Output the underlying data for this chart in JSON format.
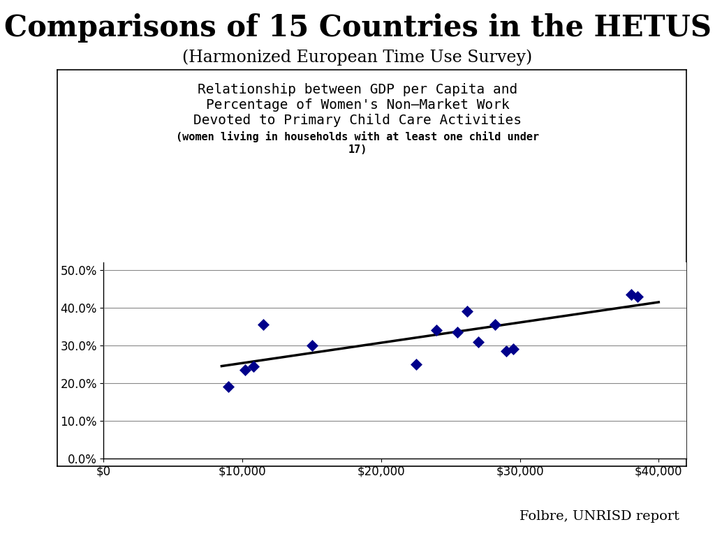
{
  "title_main": "Comparisons of 15 Countries in the HETUS",
  "title_sub": "(Harmonized European Time Use Survey)",
  "chart_title_line1": "Relationship between GDP per Capita and",
  "chart_title_line2": "Percentage of Women's Non–Market Work",
  "chart_title_line3": "Devoted to Primary Child Care Activities",
  "chart_subtitle": "(women living in households with at least one child under\n17)",
  "source": "Folbre, UNRISD report",
  "x_data": [
    9000,
    10200,
    10800,
    11500,
    15000,
    22500,
    24000,
    25500,
    26200,
    27000,
    28200,
    29000,
    29500,
    38000,
    38500
  ],
  "y_data": [
    0.19,
    0.235,
    0.245,
    0.355,
    0.3,
    0.25,
    0.34,
    0.335,
    0.39,
    0.31,
    0.355,
    0.285,
    0.29,
    0.435,
    0.43
  ],
  "trendline_x": [
    8500,
    40000
  ],
  "trendline_y": [
    0.245,
    0.415
  ],
  "xlim": [
    0,
    42000
  ],
  "ylim": [
    0.0,
    0.52
  ],
  "xticks": [
    0,
    10000,
    20000,
    30000,
    40000
  ],
  "yticks": [
    0.0,
    0.1,
    0.2,
    0.3,
    0.4,
    0.5
  ],
  "marker_color": "#00008B",
  "trendline_color": "#000000",
  "background_color": "#ffffff",
  "grid_color": "#888888",
  "box_color": "#000000"
}
